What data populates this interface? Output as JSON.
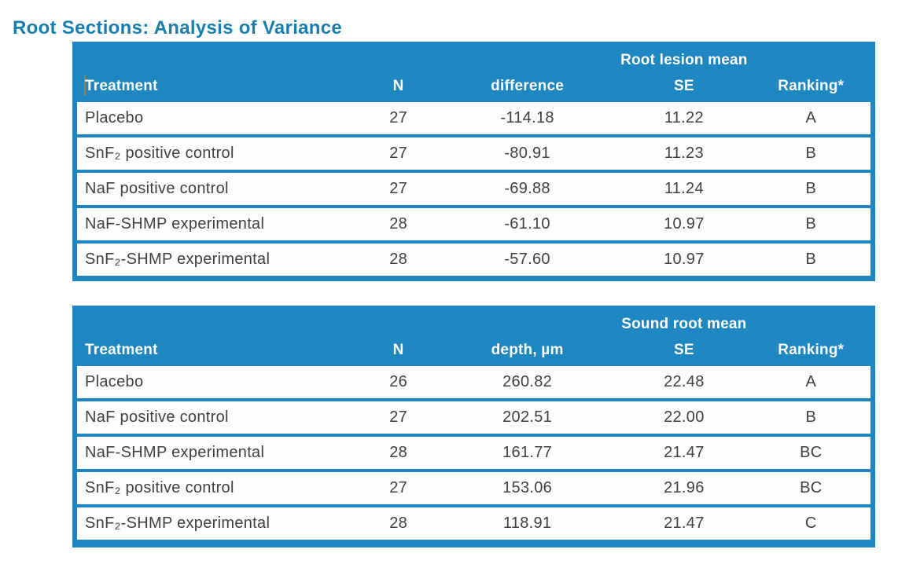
{
  "page": {
    "title": "Root Sections: Analysis of Variance"
  },
  "colors": {
    "table_blue": "#1e86c1",
    "title_blue": "#177fb0",
    "row_bg": "#fcfcfc",
    "body_text": "#414144",
    "header_text": "#ffffff",
    "caret_color": "#b57b3e"
  },
  "tables": [
    {
      "name": "root-lesion-mean-difference",
      "group_header": "Root lesion mean",
      "columns": {
        "treatment": "Treatment",
        "n": "N",
        "value": "difference",
        "se": "SE",
        "ranking": "Ranking*"
      },
      "rows": [
        {
          "treatment": "Placebo",
          "n": "27",
          "value": "-114.18",
          "se": "11.22",
          "ranking": "A"
        },
        {
          "treatment": "SnF₂ positive control",
          "n": "27",
          "value": "-80.91",
          "se": "11.23",
          "ranking": "B"
        },
        {
          "treatment": "NaF positive control",
          "n": "27",
          "value": "-69.88",
          "se": "11.24",
          "ranking": "B"
        },
        {
          "treatment": "NaF-SHMP experimental",
          "n": "28",
          "value": "-61.10",
          "se": "10.97",
          "ranking": "B"
        },
        {
          "treatment": "SnF₂-SHMP experimental",
          "n": "28",
          "value": "-57.60",
          "se": "10.97",
          "ranking": "B"
        }
      ]
    },
    {
      "name": "sound-root-mean-depth",
      "group_header": "Sound root mean",
      "columns": {
        "treatment": "Treatment",
        "n": "N",
        "value": "depth, µm",
        "se": "SE",
        "ranking": "Ranking*"
      },
      "rows": [
        {
          "treatment": "Placebo",
          "n": "26",
          "value": "260.82",
          "se": "22.48",
          "ranking": "A"
        },
        {
          "treatment": "NaF positive control",
          "n": "27",
          "value": "202.51",
          "se": "22.00",
          "ranking": "B"
        },
        {
          "treatment": "NaF-SHMP experimental",
          "n": "28",
          "value": "161.77",
          "se": "21.47",
          "ranking": "BC"
        },
        {
          "treatment": "SnF₂ positive control",
          "n": "27",
          "value": "153.06",
          "se": "21.96",
          "ranking": "BC"
        },
        {
          "treatment": "SnF₂-SHMP experimental",
          "n": "28",
          "value": "118.91",
          "se": "21.47",
          "ranking": "C"
        }
      ]
    }
  ]
}
